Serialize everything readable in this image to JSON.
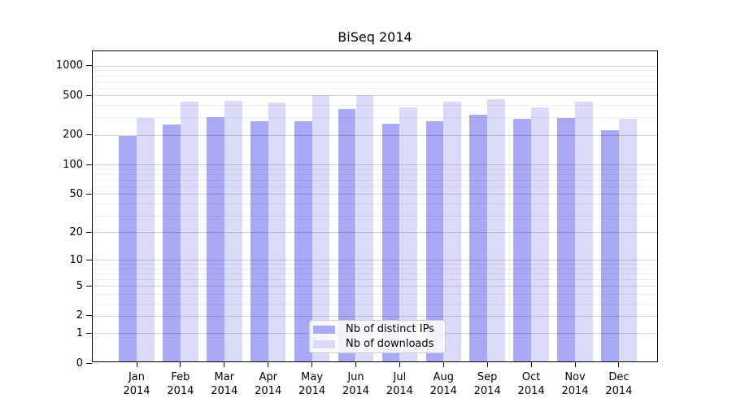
{
  "title": "BiSeq 2014",
  "legend": {
    "items": [
      {
        "label": "Nb of distinct IPs"
      },
      {
        "label": "Nb of downloads"
      }
    ]
  },
  "chart_data": {
    "type": "bar",
    "title": "BiSeq 2014",
    "scale": "log1p",
    "year": "2014",
    "categories": [
      "Jan",
      "Feb",
      "Mar",
      "Apr",
      "May",
      "Jun",
      "Jul",
      "Aug",
      "Sep",
      "Oct",
      "Nov",
      "Dec"
    ],
    "series": [
      {
        "name": "Nb of distinct IPs",
        "color": "#a9a9f6",
        "values": [
          188,
          245,
          293,
          265,
          264,
          354,
          251,
          265,
          307,
          281,
          283,
          215
        ]
      },
      {
        "name": "Nb of downloads",
        "color": "#dadaf9",
        "values": [
          285,
          418,
          426,
          409,
          484,
          487,
          366,
          420,
          442,
          365,
          415,
          280
        ]
      }
    ],
    "yticks_major": [
      0,
      1,
      2,
      5,
      10,
      20,
      50,
      100,
      200,
      500,
      1000
    ],
    "yticks_minor": [
      3,
      4,
      6,
      7,
      8,
      9,
      30,
      40,
      60,
      70,
      80,
      90,
      300,
      400,
      600,
      700,
      800,
      900
    ],
    "ylim": [
      0,
      1400
    ],
    "grid": "both",
    "legend_position": "lower-center",
    "xlabel": "",
    "ylabel": ""
  }
}
